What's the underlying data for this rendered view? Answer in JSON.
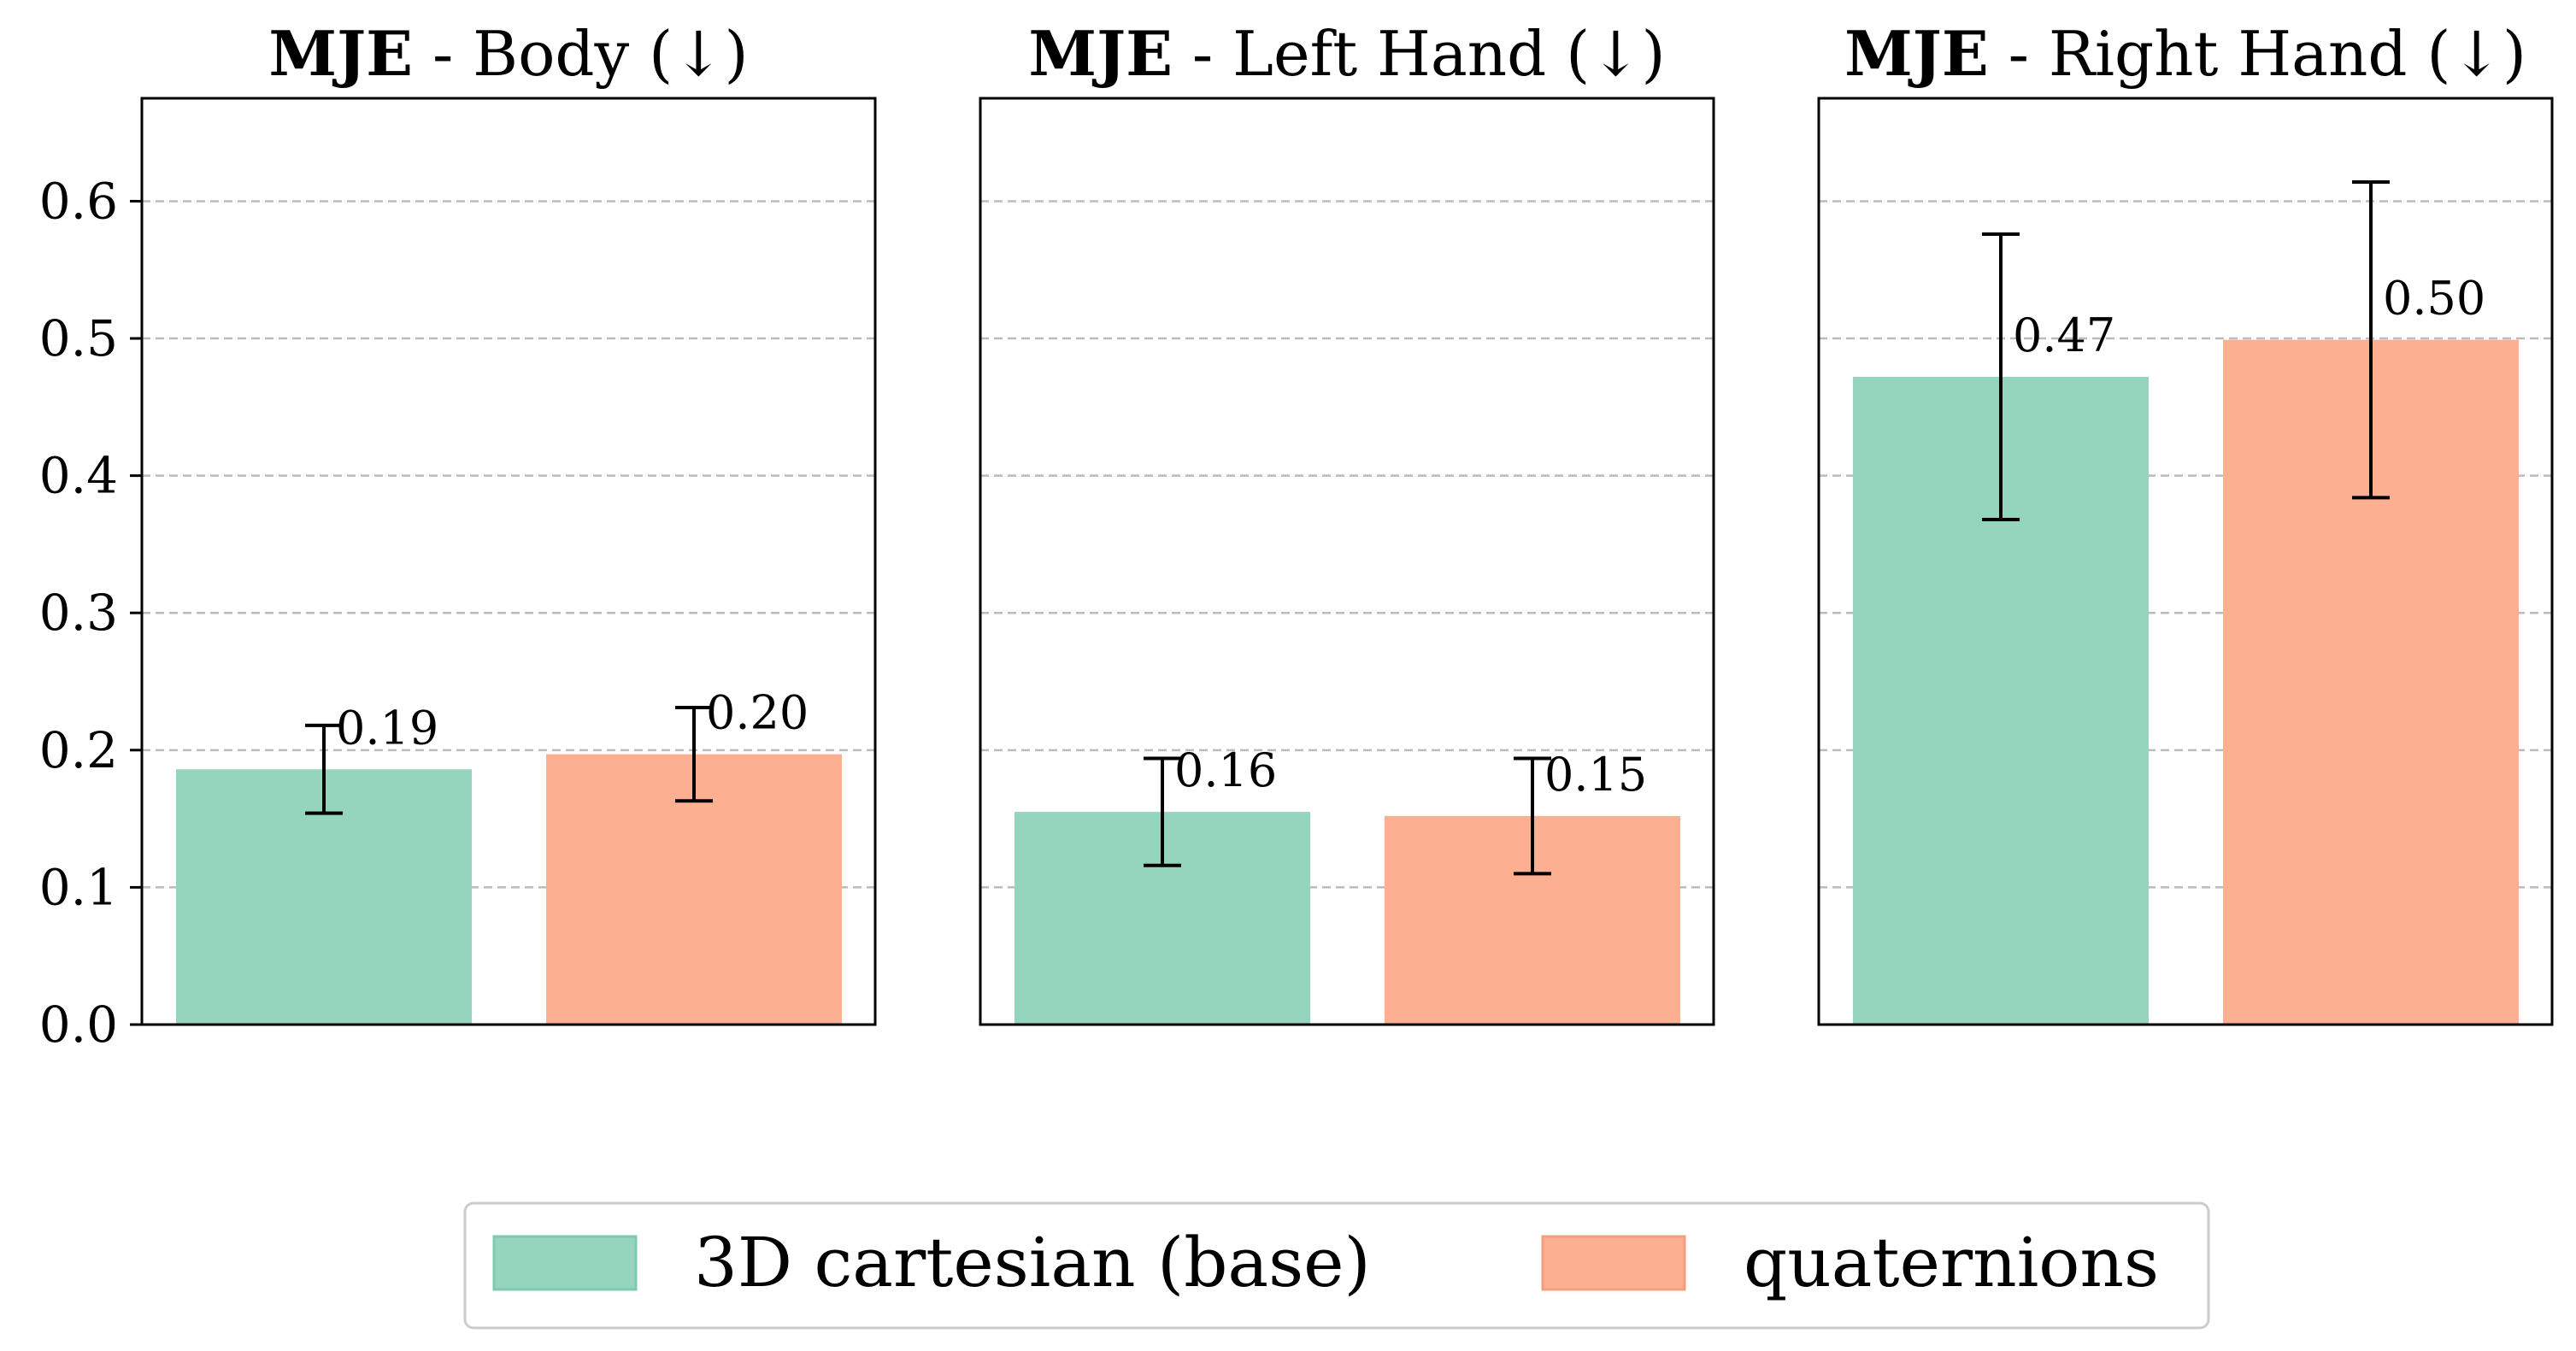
{
  "chart_data": [
    {
      "type": "bar",
      "title_bold": "MJE",
      "title_rest": " - Body (↓)",
      "categories": [
        "3D cartesian (base)",
        "quaternions"
      ],
      "values": [
        0.186,
        0.197
      ],
      "errors": [
        0.032,
        0.034
      ],
      "labels": [
        "0.19",
        "0.20"
      ],
      "ylim": [
        0,
        0.675
      ],
      "yticks": [
        "0.0",
        "0.1",
        "0.2",
        "0.3",
        "0.4",
        "0.5",
        "0.6"
      ],
      "grid": true
    },
    {
      "type": "bar",
      "title_bold": "MJE",
      "title_rest": " - Left Hand (↓)",
      "categories": [
        "3D cartesian (base)",
        "quaternions"
      ],
      "values": [
        0.155,
        0.152
      ],
      "errors": [
        0.039,
        0.042
      ],
      "labels": [
        "0.16",
        "0.15"
      ],
      "ylim": [
        0,
        0.675
      ],
      "grid": true
    },
    {
      "type": "bar",
      "title_bold": "MJE",
      "title_rest": " - Right Hand (↓)",
      "categories": [
        "3D cartesian (base)",
        "quaternions"
      ],
      "values": [
        0.472,
        0.499
      ],
      "errors": [
        0.104,
        0.115
      ],
      "labels": [
        "0.47",
        "0.50"
      ],
      "ylim": [
        0,
        0.675
      ],
      "grid": true
    }
  ],
  "legend": {
    "position": "bottom-center",
    "items": [
      {
        "label": "3D cartesian (base)",
        "color": "#95d5bd"
      },
      {
        "label": "quaternions",
        "color": "#fcaf91"
      }
    ]
  },
  "colors": {
    "series": [
      "#95d5bd",
      "#fcaf91"
    ],
    "grid": "#bbbbbb",
    "error_bar": "#000000"
  }
}
